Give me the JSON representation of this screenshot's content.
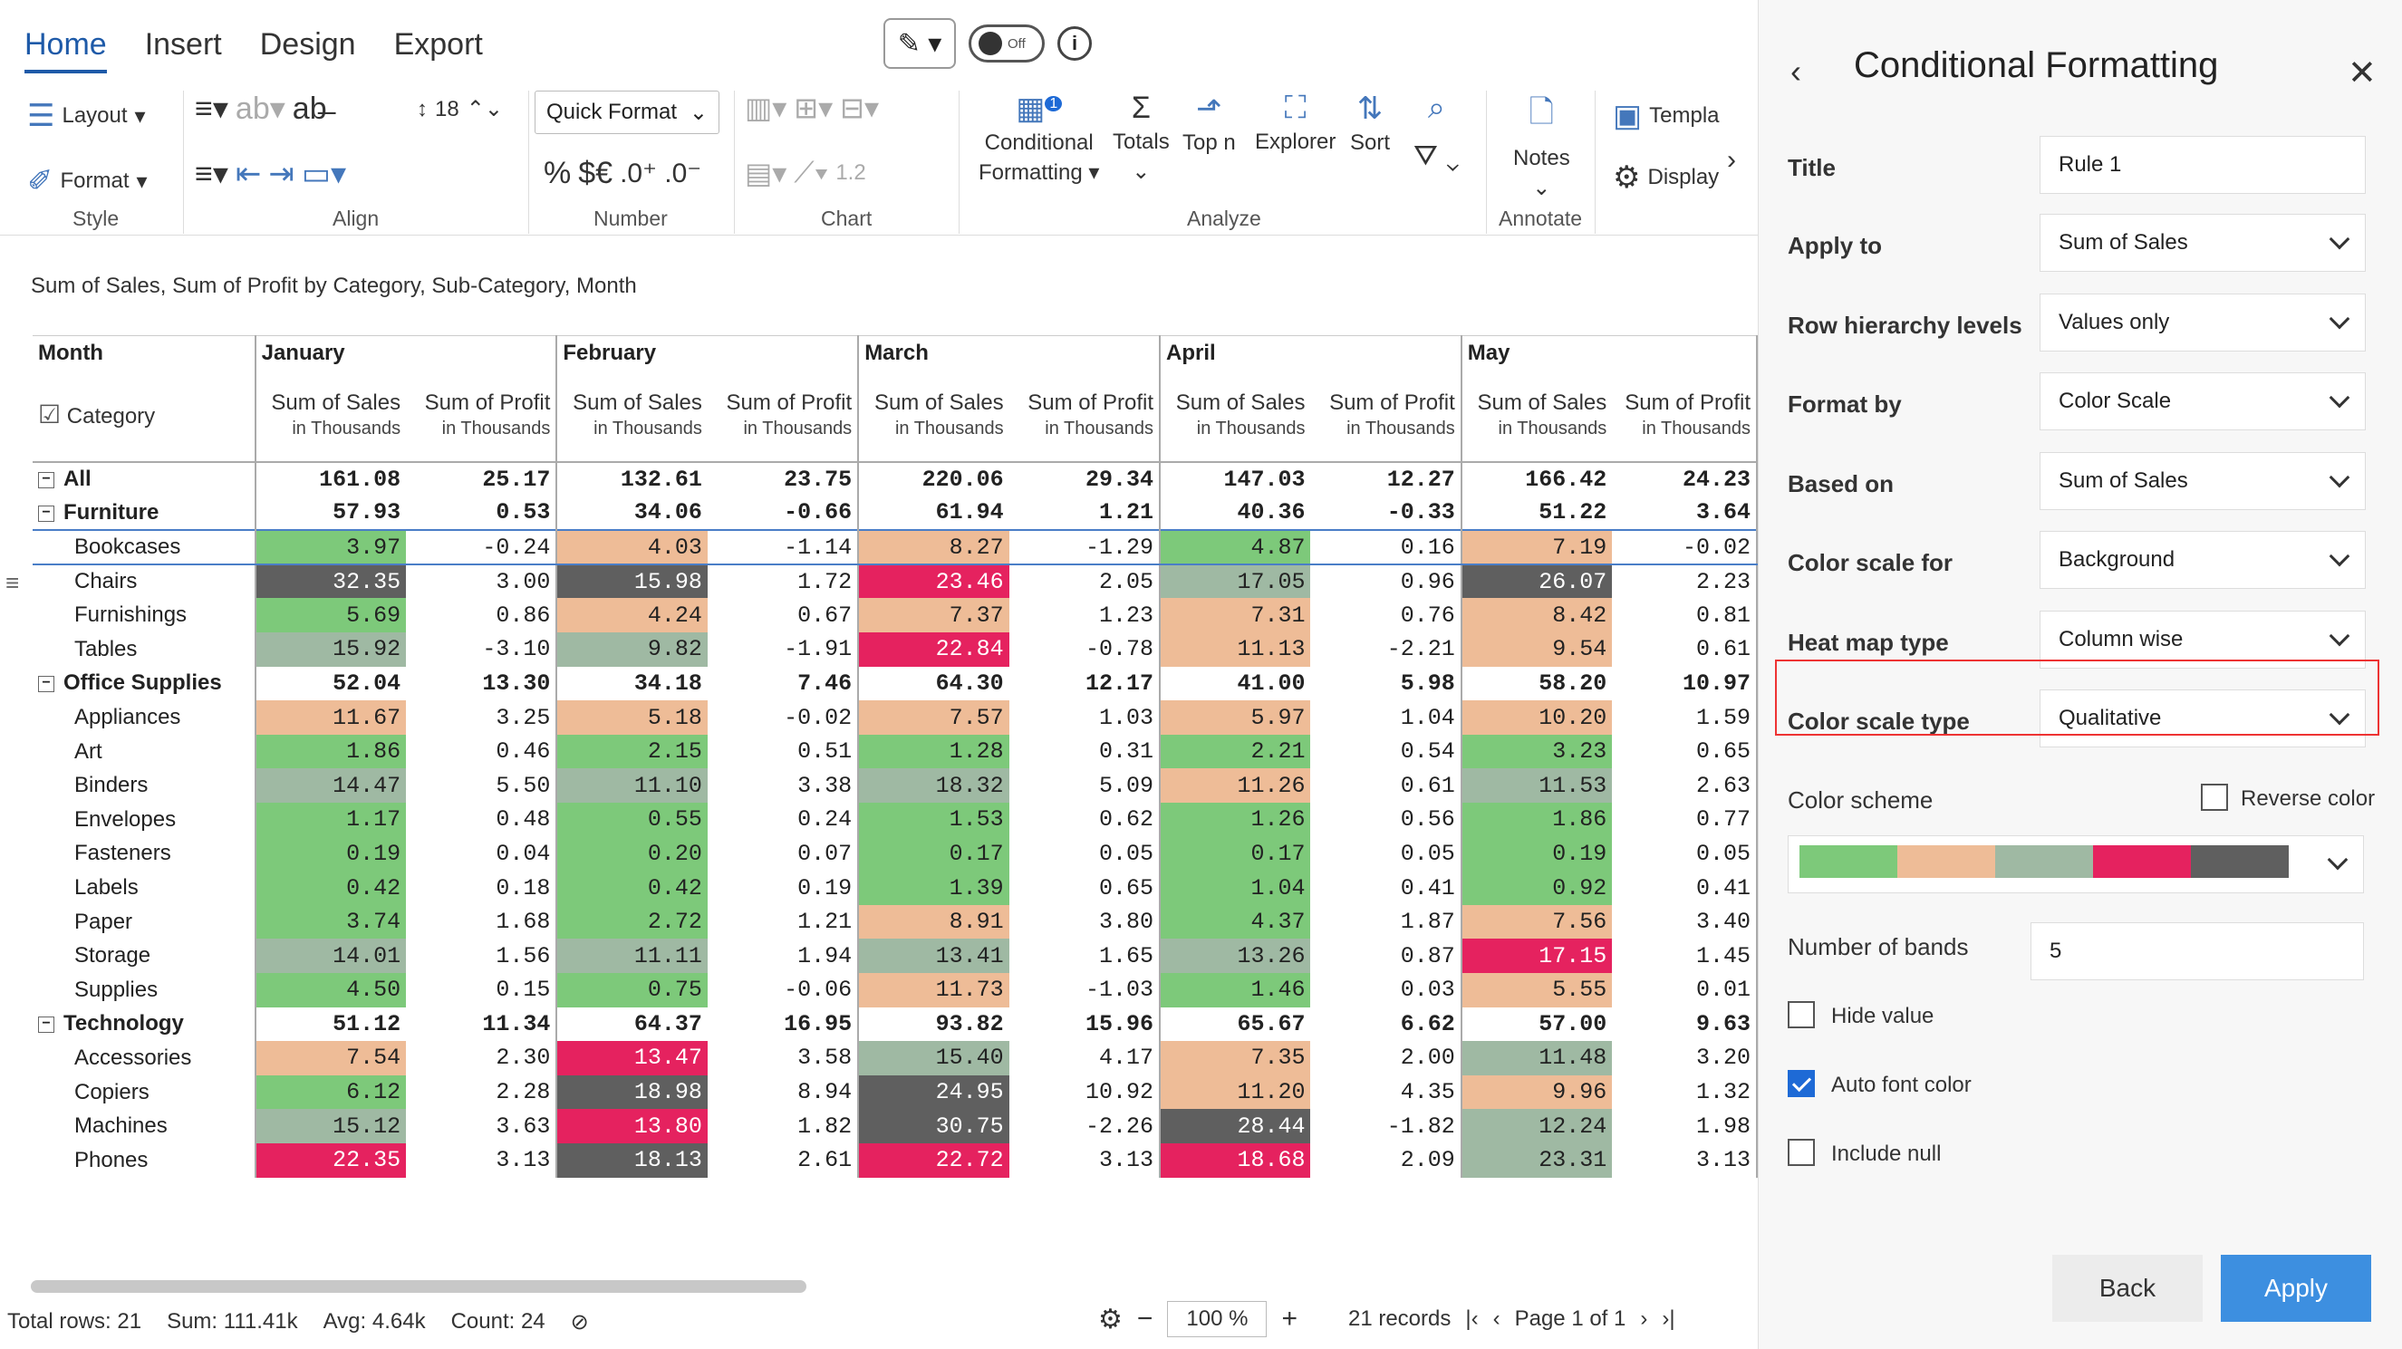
{
  "tabs": [
    "Home",
    "Insert",
    "Design",
    "Export"
  ],
  "toggle": "Off",
  "ribbon": {
    "layout": "Layout",
    "format": "Format",
    "font_size": "18",
    "quick_format": "Quick Format",
    "percent": "%",
    "currency": "$€",
    "inc_dec": ".0⁺ .0⁻",
    "num_12": "1.2",
    "conditional": "Conditional",
    "formatting": "Formatting",
    "totals": "Totals",
    "topn": "Top n",
    "explorer": "Explorer",
    "sort": "Sort",
    "notes": "Notes",
    "templates": "Templa",
    "display": "Display",
    "cond_badge": "1"
  },
  "groups": [
    "Style",
    "Align",
    "Number",
    "Chart",
    "Analyze",
    "Annotate"
  ],
  "subtitle": "Sum of Sales, Sum of Profit by Category, Sub-Category, Month",
  "grid": {
    "month_label": "Month",
    "category_label": "Category",
    "months": [
      "January",
      "February",
      "March",
      "April",
      "May"
    ],
    "sales_h": "Sum of Sales",
    "profit_h": "Sum of Profit",
    "unit": "in Thousands",
    "rows": [
      {
        "label": "All",
        "type": "total",
        "vals": [
          "161.08",
          "25.17",
          "132.61",
          "23.75",
          "220.06",
          "29.34",
          "147.03",
          "12.27",
          "166.42",
          "24.23"
        ],
        "colors": [
          null,
          null,
          null,
          null,
          null
        ]
      },
      {
        "label": "Furniture",
        "type": "cat",
        "vals": [
          "57.93",
          "0.53",
          "34.06",
          "-0.66",
          "61.94",
          "1.21",
          "40.36",
          "-0.33",
          "51.22",
          "3.64"
        ],
        "colors": [
          null,
          null,
          null,
          null,
          null
        ]
      },
      {
        "label": "Bookcases",
        "type": "sub",
        "sel": true,
        "vals": [
          "3.97",
          "-0.24",
          "4.03",
          "-1.14",
          "8.27",
          "-1.29",
          "4.87",
          "0.16",
          "7.19",
          "-0.02"
        ],
        "colors": [
          "g",
          "p",
          "p",
          "g",
          "p"
        ]
      },
      {
        "label": "Chairs",
        "type": "sub",
        "vals": [
          "32.35",
          "3.00",
          "15.98",
          "1.72",
          "23.46",
          "2.05",
          "17.05",
          "0.96",
          "26.07",
          "2.23"
        ],
        "colors": [
          "d",
          "d",
          "r",
          "s",
          "d"
        ]
      },
      {
        "label": "Furnishings",
        "type": "sub",
        "vals": [
          "5.69",
          "0.86",
          "4.24",
          "0.67",
          "7.37",
          "1.23",
          "7.31",
          "0.76",
          "8.42",
          "0.81"
        ],
        "colors": [
          "g",
          "p",
          "p",
          "p",
          "p"
        ]
      },
      {
        "label": "Tables",
        "type": "sub",
        "vals": [
          "15.92",
          "-3.10",
          "9.82",
          "-1.91",
          "22.84",
          "-0.78",
          "11.13",
          "-2.21",
          "9.54",
          "0.61"
        ],
        "colors": [
          "s",
          "s",
          "r",
          "p",
          "p"
        ]
      },
      {
        "label": "Office Supplies",
        "type": "cat",
        "vals": [
          "52.04",
          "13.30",
          "34.18",
          "7.46",
          "64.30",
          "12.17",
          "41.00",
          "5.98",
          "58.20",
          "10.97"
        ],
        "colors": [
          null,
          null,
          null,
          null,
          null
        ]
      },
      {
        "label": "Appliances",
        "type": "sub",
        "vals": [
          "11.67",
          "3.25",
          "5.18",
          "-0.02",
          "7.57",
          "1.03",
          "5.97",
          "1.04",
          "10.20",
          "1.59"
        ],
        "colors": [
          "p",
          "p",
          "p",
          "p",
          "p"
        ]
      },
      {
        "label": "Art",
        "type": "sub",
        "vals": [
          "1.86",
          "0.46",
          "2.15",
          "0.51",
          "1.28",
          "0.31",
          "2.21",
          "0.54",
          "3.23",
          "0.65"
        ],
        "colors": [
          "g",
          "g",
          "g",
          "g",
          "g"
        ]
      },
      {
        "label": "Binders",
        "type": "sub",
        "vals": [
          "14.47",
          "5.50",
          "11.10",
          "3.38",
          "18.32",
          "5.09",
          "11.26",
          "0.61",
          "11.53",
          "2.63"
        ],
        "colors": [
          "s",
          "s",
          "s",
          "p",
          "s"
        ]
      },
      {
        "label": "Envelopes",
        "type": "sub",
        "vals": [
          "1.17",
          "0.48",
          "0.55",
          "0.24",
          "1.53",
          "0.62",
          "1.26",
          "0.56",
          "1.86",
          "0.77"
        ],
        "colors": [
          "g",
          "g",
          "g",
          "g",
          "g"
        ]
      },
      {
        "label": "Fasteners",
        "type": "sub",
        "vals": [
          "0.19",
          "0.04",
          "0.20",
          "0.07",
          "0.17",
          "0.05",
          "0.17",
          "0.05",
          "0.19",
          "0.05"
        ],
        "colors": [
          "g",
          "g",
          "g",
          "g",
          "g"
        ]
      },
      {
        "label": "Labels",
        "type": "sub",
        "vals": [
          "0.42",
          "0.18",
          "0.42",
          "0.19",
          "1.39",
          "0.65",
          "1.04",
          "0.41",
          "0.92",
          "0.41"
        ],
        "colors": [
          "g",
          "g",
          "g",
          "g",
          "g"
        ]
      },
      {
        "label": "Paper",
        "type": "sub",
        "vals": [
          "3.74",
          "1.68",
          "2.72",
          "1.21",
          "8.91",
          "3.80",
          "4.37",
          "1.87",
          "7.56",
          "3.40"
        ],
        "colors": [
          "g",
          "g",
          "p",
          "g",
          "p"
        ]
      },
      {
        "label": "Storage",
        "type": "sub",
        "vals": [
          "14.01",
          "1.56",
          "11.11",
          "1.94",
          "13.41",
          "1.65",
          "13.26",
          "0.87",
          "17.15",
          "1.45"
        ],
        "colors": [
          "s",
          "s",
          "s",
          "s",
          "r"
        ]
      },
      {
        "label": "Supplies",
        "type": "sub",
        "vals": [
          "4.50",
          "0.15",
          "0.75",
          "-0.06",
          "11.73",
          "-1.03",
          "1.46",
          "0.03",
          "5.55",
          "0.01"
        ],
        "colors": [
          "g",
          "g",
          "p",
          "g",
          "p"
        ]
      },
      {
        "label": "Technology",
        "type": "cat",
        "vals": [
          "51.12",
          "11.34",
          "64.37",
          "16.95",
          "93.82",
          "15.96",
          "65.67",
          "6.62",
          "57.00",
          "9.63"
        ],
        "colors": [
          null,
          null,
          null,
          null,
          null
        ]
      },
      {
        "label": "Accessories",
        "type": "sub",
        "vals": [
          "7.54",
          "2.30",
          "13.47",
          "3.58",
          "15.40",
          "4.17",
          "7.35",
          "2.00",
          "11.48",
          "3.20"
        ],
        "colors": [
          "p",
          "r",
          "s",
          "p",
          "s"
        ]
      },
      {
        "label": "Copiers",
        "type": "sub",
        "vals": [
          "6.12",
          "2.28",
          "18.98",
          "8.94",
          "24.95",
          "10.92",
          "11.20",
          "4.35",
          "9.96",
          "1.32"
        ],
        "colors": [
          "g",
          "d",
          "d",
          "p",
          "p"
        ]
      },
      {
        "label": "Machines",
        "type": "sub",
        "vals": [
          "15.12",
          "3.63",
          "13.80",
          "1.82",
          "30.75",
          "-2.26",
          "28.44",
          "-1.82",
          "12.24",
          "1.98"
        ],
        "colors": [
          "s",
          "r",
          "d",
          "d",
          "s"
        ]
      },
      {
        "label": "Phones",
        "type": "sub",
        "vals": [
          "22.35",
          "3.13",
          "18.13",
          "2.61",
          "22.72",
          "3.13",
          "18.68",
          "2.09",
          "23.31",
          "3.13"
        ],
        "colors": [
          "r",
          "d",
          "r",
          "r",
          "s"
        ]
      }
    ]
  },
  "palette": {
    "g": "#7dc97a",
    "p": "#eebc97",
    "s": "#9fb9a3",
    "r": "#e5225f",
    "d": "#5f5f5f"
  },
  "status": {
    "total": "Total rows: 21",
    "sum": "Sum: 111.41k",
    "avg": "Avg: 4.64k",
    "count": "Count: 24"
  },
  "pager": {
    "zoom": "100 %",
    "records": "21 records",
    "page": "Page 1 of 1"
  },
  "panel": {
    "title": "Conditional Formatting",
    "fields": [
      {
        "label": "Title",
        "value": "Rule 1",
        "dd": false
      },
      {
        "label": "Apply to",
        "value": "Sum of Sales",
        "dd": true
      },
      {
        "label": "Row hierarchy levels",
        "value": "Values only",
        "dd": true
      },
      {
        "label": "Format by",
        "value": "Color Scale",
        "dd": true
      },
      {
        "label": "Based on",
        "value": "Sum of Sales",
        "dd": true
      },
      {
        "label": "Color scale for",
        "value": "Background",
        "dd": true
      },
      {
        "label": "Heat map type",
        "value": "Column wise",
        "dd": true
      },
      {
        "label": "Color scale type",
        "value": "Qualitative",
        "dd": true
      }
    ],
    "color_scheme": "Color scheme",
    "reverse": "Reverse color",
    "bands_label": "Number of bands",
    "bands": "5",
    "hide_value": "Hide value",
    "auto_font": "Auto font color",
    "include_null": "Include null",
    "back": "Back",
    "apply": "Apply",
    "scheme_colors": [
      "#7dc97a",
      "#eebc97",
      "#9fb9a3",
      "#e5225f",
      "#5f5f5f"
    ]
  }
}
